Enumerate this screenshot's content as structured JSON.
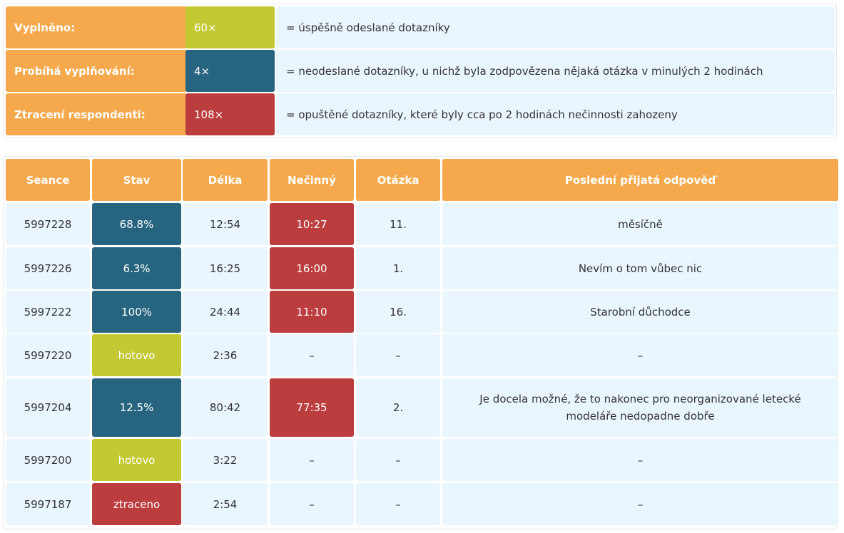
{
  "legend": [
    {
      "label": "Vyplněno:",
      "count": "60×",
      "description": "= úspěšně odeslané dotazníky",
      "color": "#c2c933"
    },
    {
      "label": "Probíhá vyplňování:",
      "count": "4×",
      "description": "= neodeslané dotazníky, u nichž byla zodpovězena nějaká otázka v minulých 2 hodinách",
      "color": "#26647f"
    },
    {
      "label": "Ztracení respondenti:",
      "count": "108×",
      "description": "= opuštěné dotazníky, které byly cca po 2 hodinách nečinnosti zahozeny",
      "color": "#bb3d3e"
    }
  ],
  "table": {
    "headers": [
      "Seance",
      "Stav",
      "Délka",
      "Nečinný",
      "Otázka",
      "Poslední přijatá odpověď"
    ],
    "rows": [
      {
        "seance": "5997228",
        "stav": "68.8%",
        "stav_type": "progress",
        "delka": "12:54",
        "necinny": "10:27",
        "otazka": "11.",
        "odpoved": "měsíčně"
      },
      {
        "seance": "5997226",
        "stav": "6.3%",
        "stav_type": "progress",
        "delka": "16:25",
        "necinny": "16:00",
        "otazka": "1.",
        "odpoved": "Nevím o tom vůbec nic"
      },
      {
        "seance": "5997222",
        "stav": "100%",
        "stav_type": "progress",
        "delka": "24:44",
        "necinny": "11:10",
        "otazka": "16.",
        "odpoved": "Starobní důchodce"
      },
      {
        "seance": "5997220",
        "stav": "hotovo",
        "stav_type": "done",
        "delka": "2:36",
        "necinny": "–",
        "otazka": "–",
        "odpoved": "–"
      },
      {
        "seance": "5997204",
        "stav": "12.5%",
        "stav_type": "progress",
        "delka": "80:42",
        "necinny": "77:35",
        "otazka": "2.",
        "odpoved": "Je docela možné, že to nakonec pro neorganizované letecké modeláře nedopadne dobře"
      },
      {
        "seance": "5997200",
        "stav": "hotovo",
        "stav_type": "done",
        "delka": "3:22",
        "necinny": "–",
        "otazka": "–",
        "odpoved": "–"
      },
      {
        "seance": "5997187",
        "stav": "ztraceno",
        "stav_type": "lost",
        "delka": "2:54",
        "necinny": "–",
        "otazka": "–",
        "odpoved": "–"
      }
    ]
  },
  "colors": {
    "header": "#f5a94c",
    "done": "#c2c933",
    "progress": "#26647f",
    "idle": "#bb3d3e",
    "lost": "#bb3d3e",
    "cell": "#eaf6fd"
  }
}
